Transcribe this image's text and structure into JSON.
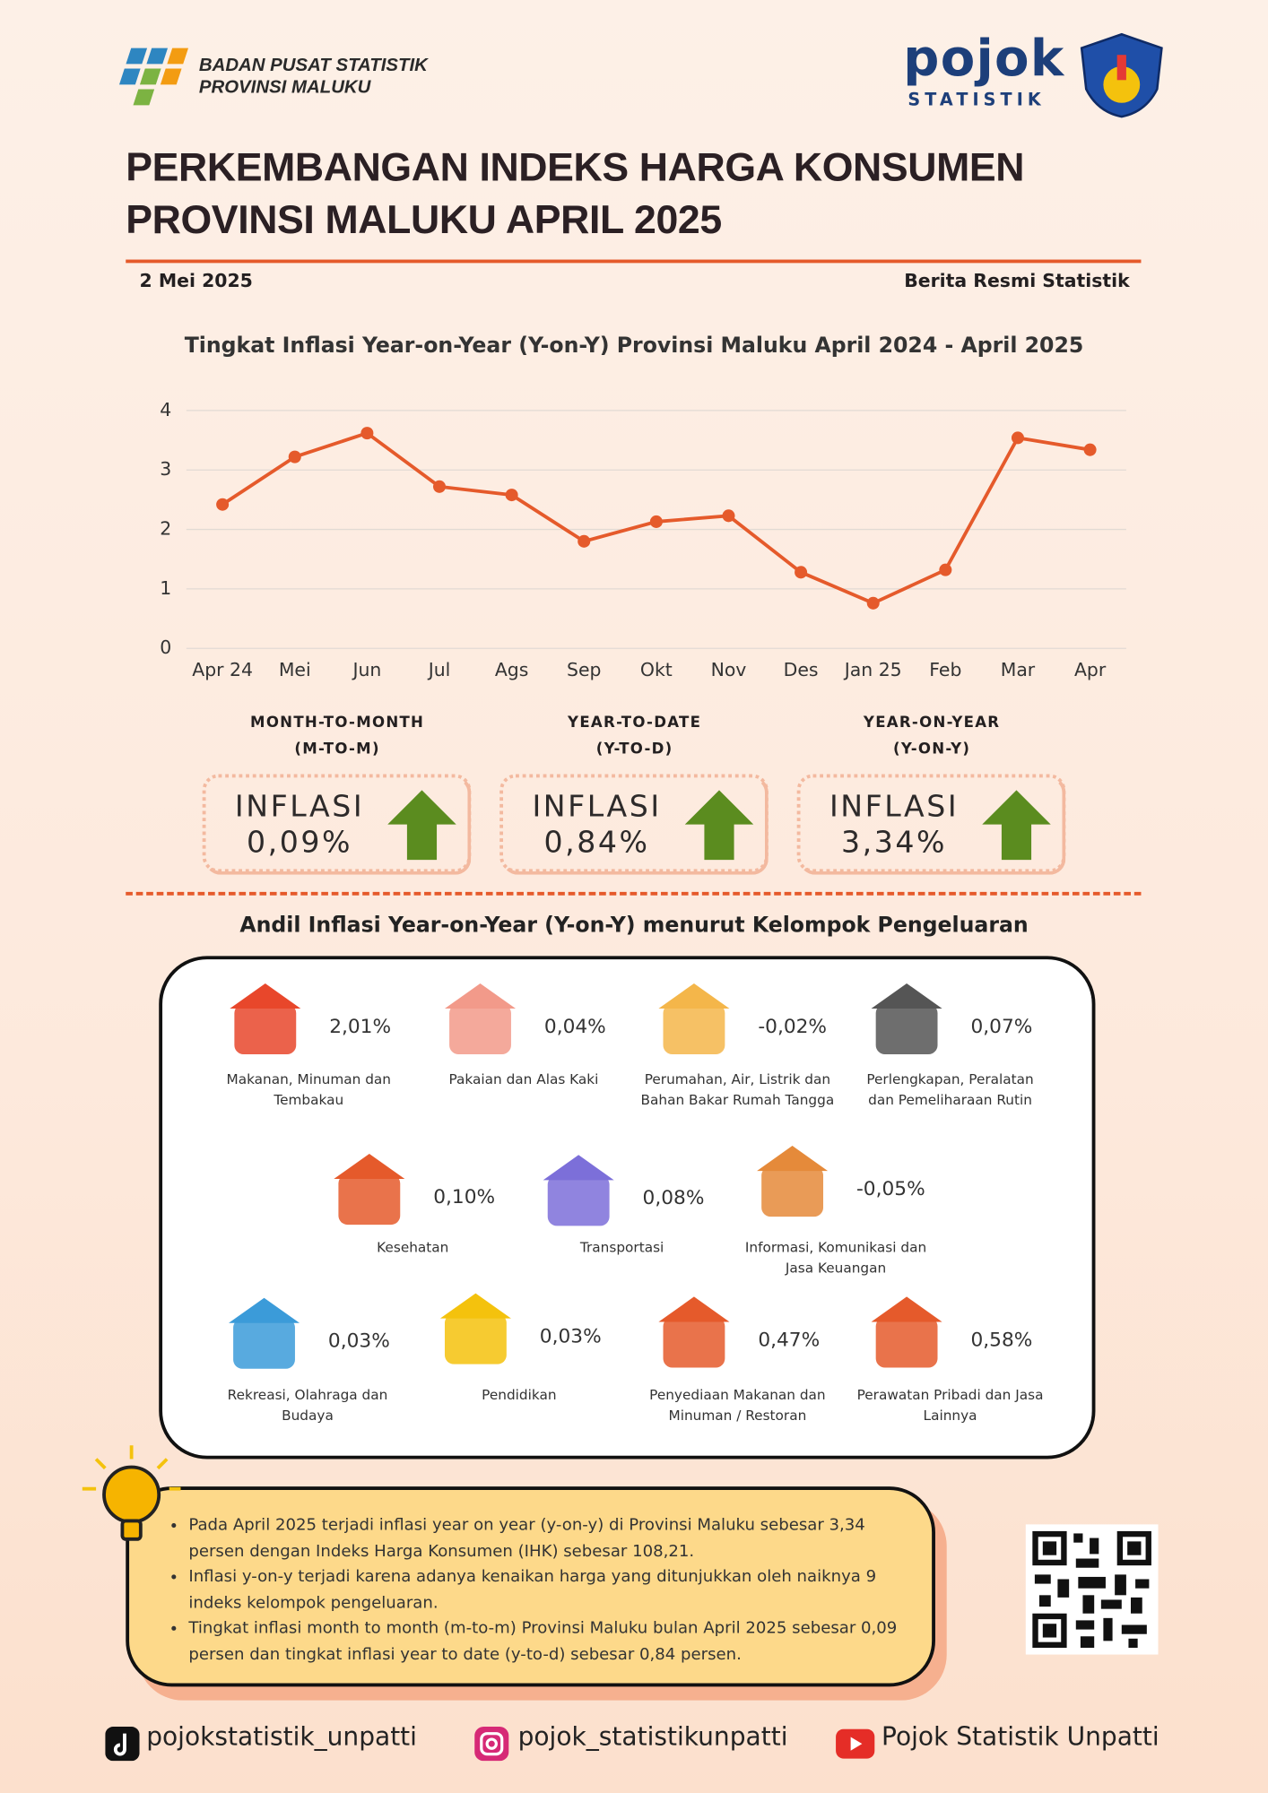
{
  "header": {
    "org": [
      "BADAN PUSAT STATISTIK",
      "PROVINSI MALUKU"
    ],
    "brand": "pojok",
    "brand_sub": "STATISTIK",
    "title": [
      "PERKEMBANGAN INDEKS HARGA KONSUMEN",
      "PROVINSI MALUKU APRIL 2025"
    ],
    "date": "2 Mei 2025",
    "category": "Berita Resmi Statistik"
  },
  "chart_data": {
    "type": "line",
    "title": "Tingkat Inflasi Year-on-Year (Y-on-Y) Provinsi Maluku April 2024 - April 2025",
    "categories": [
      "Apr 24",
      "Mei",
      "Jun",
      "Jul",
      "Ags",
      "Sep",
      "Okt",
      "Nov",
      "Des",
      "Jan 25",
      "Feb",
      "Mar",
      "Apr"
    ],
    "values": [
      2.42,
      3.22,
      3.62,
      2.72,
      2.58,
      1.8,
      2.13,
      2.23,
      1.28,
      0.76,
      1.32,
      3.54,
      3.34
    ],
    "color": "#e55a2b",
    "ylim": [
      0,
      4
    ],
    "yticks": [
      0,
      1,
      2,
      3,
      4
    ],
    "grid": true
  },
  "indicators": [
    {
      "label": "MONTH-TO-MONTH",
      "abbr": "(M-TO-M)",
      "status": "INFLASI",
      "value": "0,09%"
    },
    {
      "label": "YEAR-TO-DATE",
      "abbr": "(Y-TO-D)",
      "status": "INFLASI",
      "value": "0,84%"
    },
    {
      "label": "YEAR-ON-YEAR",
      "abbr": "(Y-ON-Y)",
      "status": "INFLASI",
      "value": "3,34%"
    }
  ],
  "andil": {
    "title": "Andil Inflasi Year-on-Year (Y-on-Y) menurut Kelompok Pengeluaran",
    "items": [
      {
        "value": "2,01%",
        "label": "Makanan, Minuman dan Tembakau"
      },
      {
        "value": "0,04%",
        "label": "Pakaian dan Alas Kaki"
      },
      {
        "value": "-0,02%",
        "label": "Perumahan, Air, Listrik dan Bahan Bakar Rumah Tangga"
      },
      {
        "value": "0,07%",
        "label": "Perlengkapan, Peralatan dan Pemeliharaan Rutin"
      },
      {
        "value": "0,10%",
        "label": "Kesehatan"
      },
      {
        "value": "0,08%",
        "label": "Transportasi"
      },
      {
        "value": "-0,05%",
        "label": "Informasi, Komunikasi dan Jasa Keuangan"
      },
      {
        "value": "0,03%",
        "label": "Rekreasi, Olahraga dan Budaya"
      },
      {
        "value": "0,03%",
        "label": "Pendidikan"
      },
      {
        "value": "0,47%",
        "label": "Penyediaan Makanan dan Minuman / Restoran"
      },
      {
        "value": "0,58%",
        "label": "Perawatan Pribadi dan Jasa Lainnya"
      }
    ]
  },
  "notes": [
    "Pada April 2025 terjadi inflasi year on year (y-on-y) di Provinsi Maluku sebesar 3,34 persen dengan Indeks Harga Konsumen (IHK) sebesar 108,21.",
    "Inflasi y-on-y terjadi karena adanya kenaikan harga yang ditunjukkan oleh naiknya 9 indeks kelompok pengeluaran.",
    "Tingkat inflasi month to month (m-to-m) Provinsi Maluku bulan April 2025 sebesar 0,09 persen dan tingkat inflasi year to date (y-to-d) sebesar 0,84 persen."
  ],
  "social": [
    "pojokstatistik_unpatti",
    "pojok_statistikunpatti",
    "Pojok Statistik Unpatti"
  ]
}
